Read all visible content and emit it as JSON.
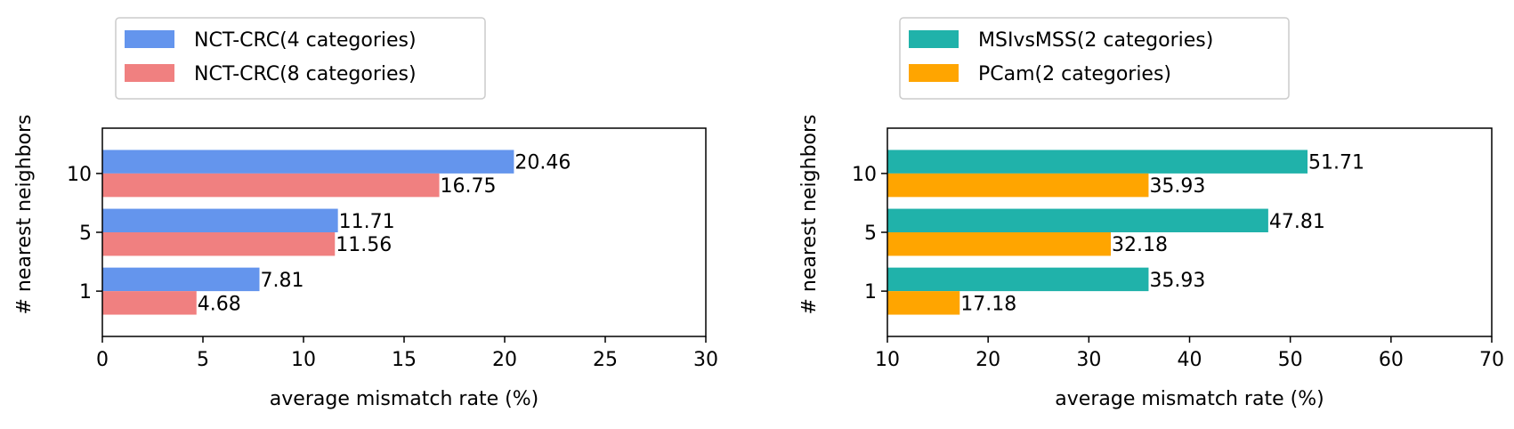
{
  "chart_data": [
    {
      "type": "bar",
      "orientation": "horizontal",
      "categories": [
        "1",
        "5",
        "10"
      ],
      "series": [
        {
          "name": "NCT-CRC(4 categories)",
          "values": [
            7.81,
            11.71,
            20.46
          ],
          "labels": [
            "7.81",
            "11.71",
            "20.46"
          ],
          "color": "#6495ED"
        },
        {
          "name": "NCT-CRC(8 categories)",
          "values": [
            4.68,
            11.56,
            16.75
          ],
          "labels": [
            "4.68",
            "11.56",
            "16.75"
          ],
          "color": "#F08080"
        }
      ],
      "xlabel": "average mismatch rate (%)",
      "ylabel": "# nearest neighbors",
      "xlim": [
        0,
        30
      ],
      "xticks": [
        "0",
        "5",
        "10",
        "15",
        "20",
        "25",
        "30"
      ],
      "legend_position": "top-left, above plot",
      "grid": false
    },
    {
      "type": "bar",
      "orientation": "horizontal",
      "categories": [
        "1",
        "5",
        "10"
      ],
      "series": [
        {
          "name": "MSIvsMSS(2 categories)",
          "values": [
            35.93,
            47.81,
            51.71
          ],
          "labels": [
            "35.93",
            "47.81",
            "51.71"
          ],
          "color": "#20B2AA"
        },
        {
          "name": "PCam(2 categories)",
          "values": [
            17.18,
            32.18,
            35.93
          ],
          "labels": [
            "17.18",
            "32.18",
            "35.93"
          ],
          "color": "#FFA500"
        }
      ],
      "xlabel": "average mismatch rate (%)",
      "ylabel": "# nearest neighbors",
      "xlim": [
        10,
        70
      ],
      "xticks": [
        "10",
        "20",
        "30",
        "40",
        "50",
        "60",
        "70"
      ],
      "legend_position": "top-left, above plot",
      "grid": false
    }
  ]
}
